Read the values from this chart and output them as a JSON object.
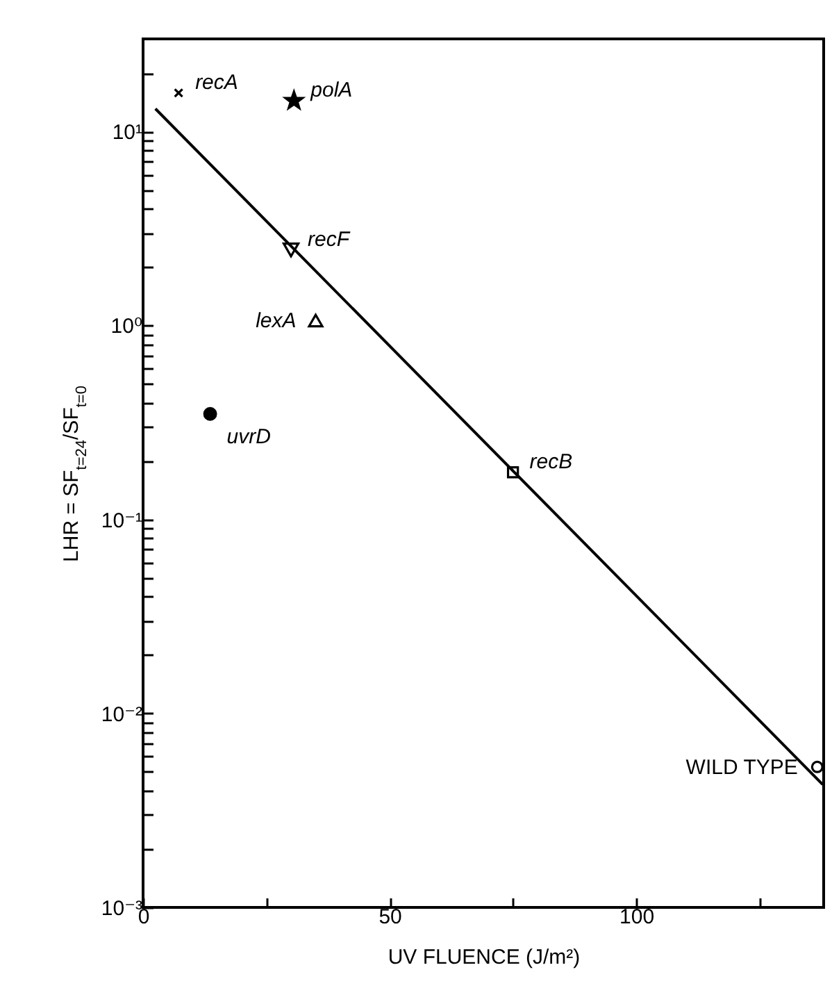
{
  "chart_data": {
    "type": "scatter",
    "xlabel": "UV FLUENCE (J/m²)",
    "ylabel": "LHR = SF$_{t=24}$/SF$_{t=0}$",
    "log": "y",
    "xlim": [
      0,
      138
    ],
    "ylim": [
      0.001,
      30
    ],
    "xticks": [
      0,
      {
        "value": 25,
        "label": null
      },
      50,
      {
        "value": 75,
        "label": null
      },
      100,
      {
        "value": 125,
        "label": null
      }
    ],
    "yticks": [
      {
        "value": 0.001,
        "label": "10⁻³"
      },
      {
        "value": 0.002,
        "label": null
      },
      {
        "value": 0.003,
        "label": null
      },
      {
        "value": 0.004,
        "label": null
      },
      {
        "value": 0.005,
        "label": null
      },
      {
        "value": 0.006,
        "label": null
      },
      {
        "value": 0.007,
        "label": null
      },
      {
        "value": 0.008,
        "label": null
      },
      {
        "value": 0.009,
        "label": null
      },
      {
        "value": 0.01,
        "label": "10⁻²"
      },
      {
        "value": 0.02,
        "label": null
      },
      {
        "value": 0.03,
        "label": null
      },
      {
        "value": 0.04,
        "label": null
      },
      {
        "value": 0.05,
        "label": null
      },
      {
        "value": 0.06,
        "label": null
      },
      {
        "value": 0.07,
        "label": null
      },
      {
        "value": 0.08,
        "label": null
      },
      {
        "value": 0.09,
        "label": null
      },
      {
        "value": 0.1,
        "label": "10⁻¹"
      },
      {
        "value": 0.2,
        "label": null
      },
      {
        "value": 0.3,
        "label": null
      },
      {
        "value": 0.4,
        "label": null
      },
      {
        "value": 0.5,
        "label": null
      },
      {
        "value": 0.6,
        "label": null
      },
      {
        "value": 0.7,
        "label": null
      },
      {
        "value": 0.8,
        "label": null
      },
      {
        "value": 0.9,
        "label": null
      },
      {
        "value": 1,
        "label": "10⁰"
      },
      {
        "value": 2,
        "label": null
      },
      {
        "value": 3,
        "label": null
      },
      {
        "value": 4,
        "label": null
      },
      {
        "value": 5,
        "label": null
      },
      {
        "value": 6,
        "label": null
      },
      {
        "value": 7,
        "label": null
      },
      {
        "value": 8,
        "label": null
      },
      {
        "value": 9,
        "label": null
      },
      {
        "value": 10,
        "label": "10¹"
      },
      {
        "value": 20,
        "label": null
      }
    ],
    "series": [
      {
        "name": "recA",
        "marker": "cross",
        "color": "#000000",
        "x": [
          7.2
        ],
        "values": [
          15.8
        ]
      },
      {
        "name": "polA",
        "marker": "star",
        "color": "#000000",
        "x": [
          30.6
        ],
        "values": [
          14.4
        ]
      },
      {
        "name": "recF",
        "marker": "triangle-down",
        "color": "#000000",
        "x": [
          30
        ],
        "values": [
          2.45
        ]
      },
      {
        "name": "lexA",
        "marker": "triangle",
        "color": "#000000",
        "x": [
          35
        ],
        "values": [
          1.06
        ]
      },
      {
        "name": "uvrD",
        "marker": "filled-circle",
        "color": "#000000",
        "x": [
          13.6
        ],
        "values": [
          0.35
        ]
      },
      {
        "name": "recB",
        "marker": "square",
        "color": "#000000",
        "x": [
          75
        ],
        "values": [
          0.175
        ]
      },
      {
        "name": "WILD TYPE",
        "marker": "circle",
        "color": "#000000",
        "x": [
          136.7
        ],
        "values": [
          0.0053
        ]
      },
      {
        "type": "line",
        "color": "#000000",
        "x": [
          2.5,
          137.8
        ],
        "values": [
          13.1,
          0.0043
        ]
      }
    ]
  }
}
